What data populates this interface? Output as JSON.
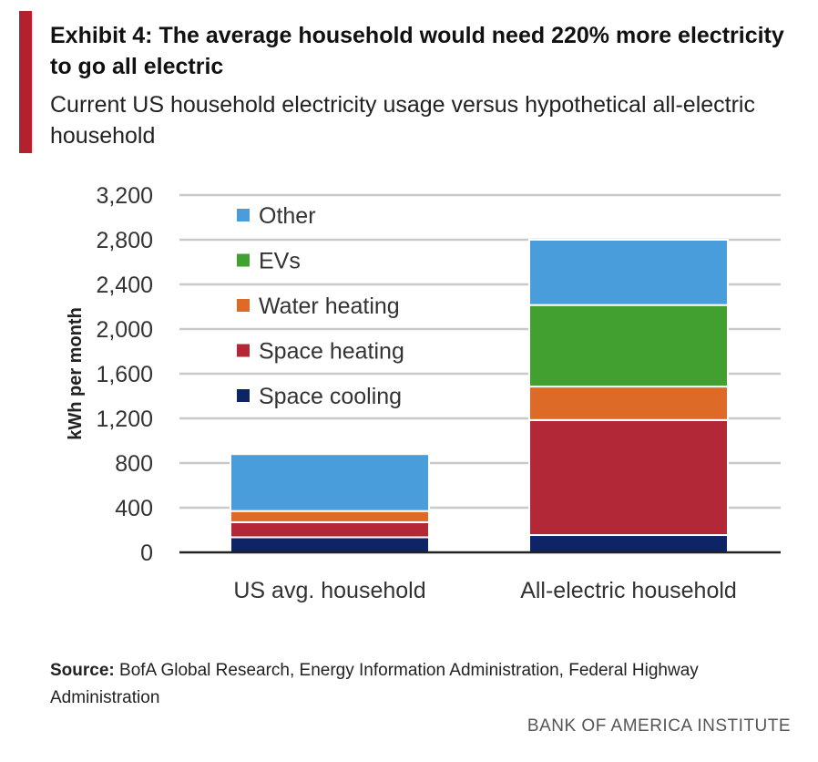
{
  "header": {
    "title": "Exhibit 4: The average household would need 220% more electricity to go all electric",
    "subtitle": "Current US household electricity usage versus hypothetical all-electric household"
  },
  "footer": {
    "source_label": "Source:",
    "source_text": "BofA Global Research, Energy Information Administration, Federal Highway Administration",
    "brand": "BANK OF AMERICA INSTITUTE"
  },
  "colors": {
    "accent": "#b5202e",
    "space_cooling": "#0d2566",
    "space_heating": "#b32836",
    "water_heating": "#dd6b27",
    "evs": "#41a030",
    "other": "#4a9ddb"
  },
  "chart_data": {
    "type": "bar",
    "stacked": true,
    "categories": [
      "US avg. household",
      "All-electric household"
    ],
    "series": [
      {
        "name": "Space cooling",
        "color": "#0d2566",
        "values": [
          135,
          155
        ]
      },
      {
        "name": "Space heating",
        "color": "#b32836",
        "values": [
          135,
          1030
        ]
      },
      {
        "name": "Water heating",
        "color": "#dd6b27",
        "values": [
          100,
          300
        ]
      },
      {
        "name": "EVs",
        "color": "#41a030",
        "values": [
          0,
          730
        ]
      },
      {
        "name": "Other",
        "color": "#4a9ddb",
        "values": [
          510,
          585
        ]
      }
    ],
    "ylabel": "kWh per month",
    "ylim": [
      0,
      3200
    ],
    "yticks": [
      "0",
      "400",
      "800",
      "1,200",
      "1,600",
      "2,000",
      "2,400",
      "2,800",
      "3,200"
    ],
    "legend_position": "top-left",
    "legend_order": [
      "Other",
      "EVs",
      "Water heating",
      "Space heating",
      "Space cooling"
    ],
    "grid": true
  }
}
